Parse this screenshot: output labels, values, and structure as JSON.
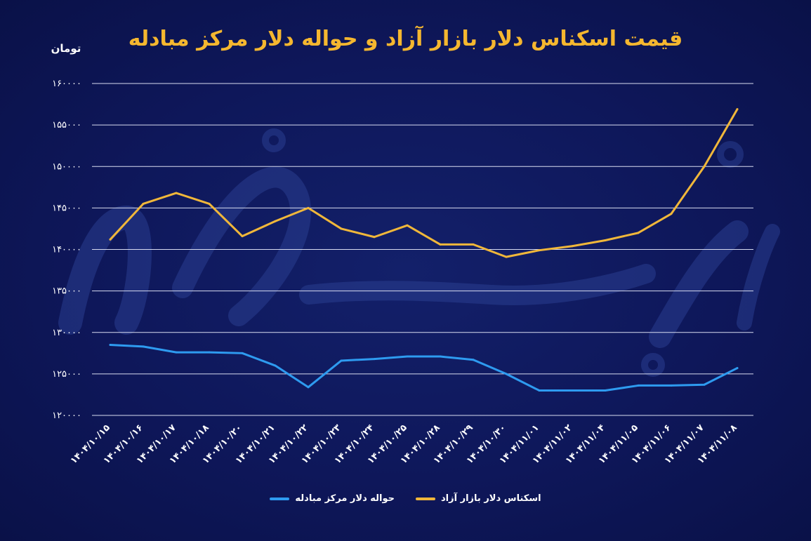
{
  "chart_data": {
    "type": "line",
    "title": "قیمت اسکناس دلار بازار آزاد و حواله دلار مرکز مبادله",
    "ylabel": "تومان",
    "xlabel": "",
    "ylim": [
      120000,
      160000
    ],
    "yticks": [
      120000,
      125000,
      130000,
      135000,
      140000,
      145000,
      150000,
      155000,
      160000
    ],
    "ytick_labels": [
      "۱۲۰۰۰۰",
      "۱۲۵۰۰۰",
      "۱۳۰۰۰۰",
      "۱۳۵۰۰۰",
      "۱۴۰۰۰۰",
      "۱۴۵۰۰۰",
      "۱۵۰۰۰۰",
      "۱۵۵۰۰۰",
      "۱۶۰۰۰۰"
    ],
    "categories": [
      "۱۴۰۴/۱۰/۱۵",
      "۱۴۰۴/۱۰/۱۶",
      "۱۴۰۴/۱۰/۱۷",
      "۱۴۰۴/۱۰/۱۸",
      "۱۴۰۴/۱۰/۲۰",
      "۱۴۰۴/۱۰/۲۱",
      "۱۴۰۴/۱۰/۲۲",
      "۱۴۰۴/۱۰/۲۳",
      "۱۴۰۴/۱۰/۲۴",
      "۱۴۰۴/۱۰/۲۵",
      "۱۴۰۴/۱۰/۲۸",
      "۱۴۰۴/۱۰/۲۹",
      "۱۴۰۴/۱۰/۳۰",
      "۱۴۰۴/۱۱/۰۱",
      "۱۴۰۴/۱۱/۰۲",
      "۱۴۰۴/۱۱/۰۴",
      "۱۴۰۴/۱۱/۰۵",
      "۱۴۰۴/۱۱/۰۶",
      "۱۴۰۴/۱۱/۰۷",
      "۱۴۰۴/۱۱/۰۸"
    ],
    "grid": true,
    "legend_position": "bottom",
    "series": [
      {
        "name": "حواله دلار مرکز مبادله",
        "color": "#2e9bf0",
        "values": [
          128500,
          128300,
          127600,
          127600,
          127500,
          126000,
          123400,
          126600,
          126800,
          127100,
          127100,
          126700,
          125000,
          123000,
          123000,
          123000,
          123600,
          123600,
          123700,
          125700
        ]
      },
      {
        "name": "اسکناس دلار بازار آزاد",
        "color": "#f0b73a",
        "values": [
          141200,
          145500,
          146800,
          145500,
          141600,
          143400,
          145000,
          142500,
          141500,
          142900,
          140600,
          140600,
          139100,
          139900,
          140400,
          141100,
          142000,
          144300,
          150000,
          156900
        ]
      }
    ],
    "watermark": "دنیای اقتصاد"
  }
}
